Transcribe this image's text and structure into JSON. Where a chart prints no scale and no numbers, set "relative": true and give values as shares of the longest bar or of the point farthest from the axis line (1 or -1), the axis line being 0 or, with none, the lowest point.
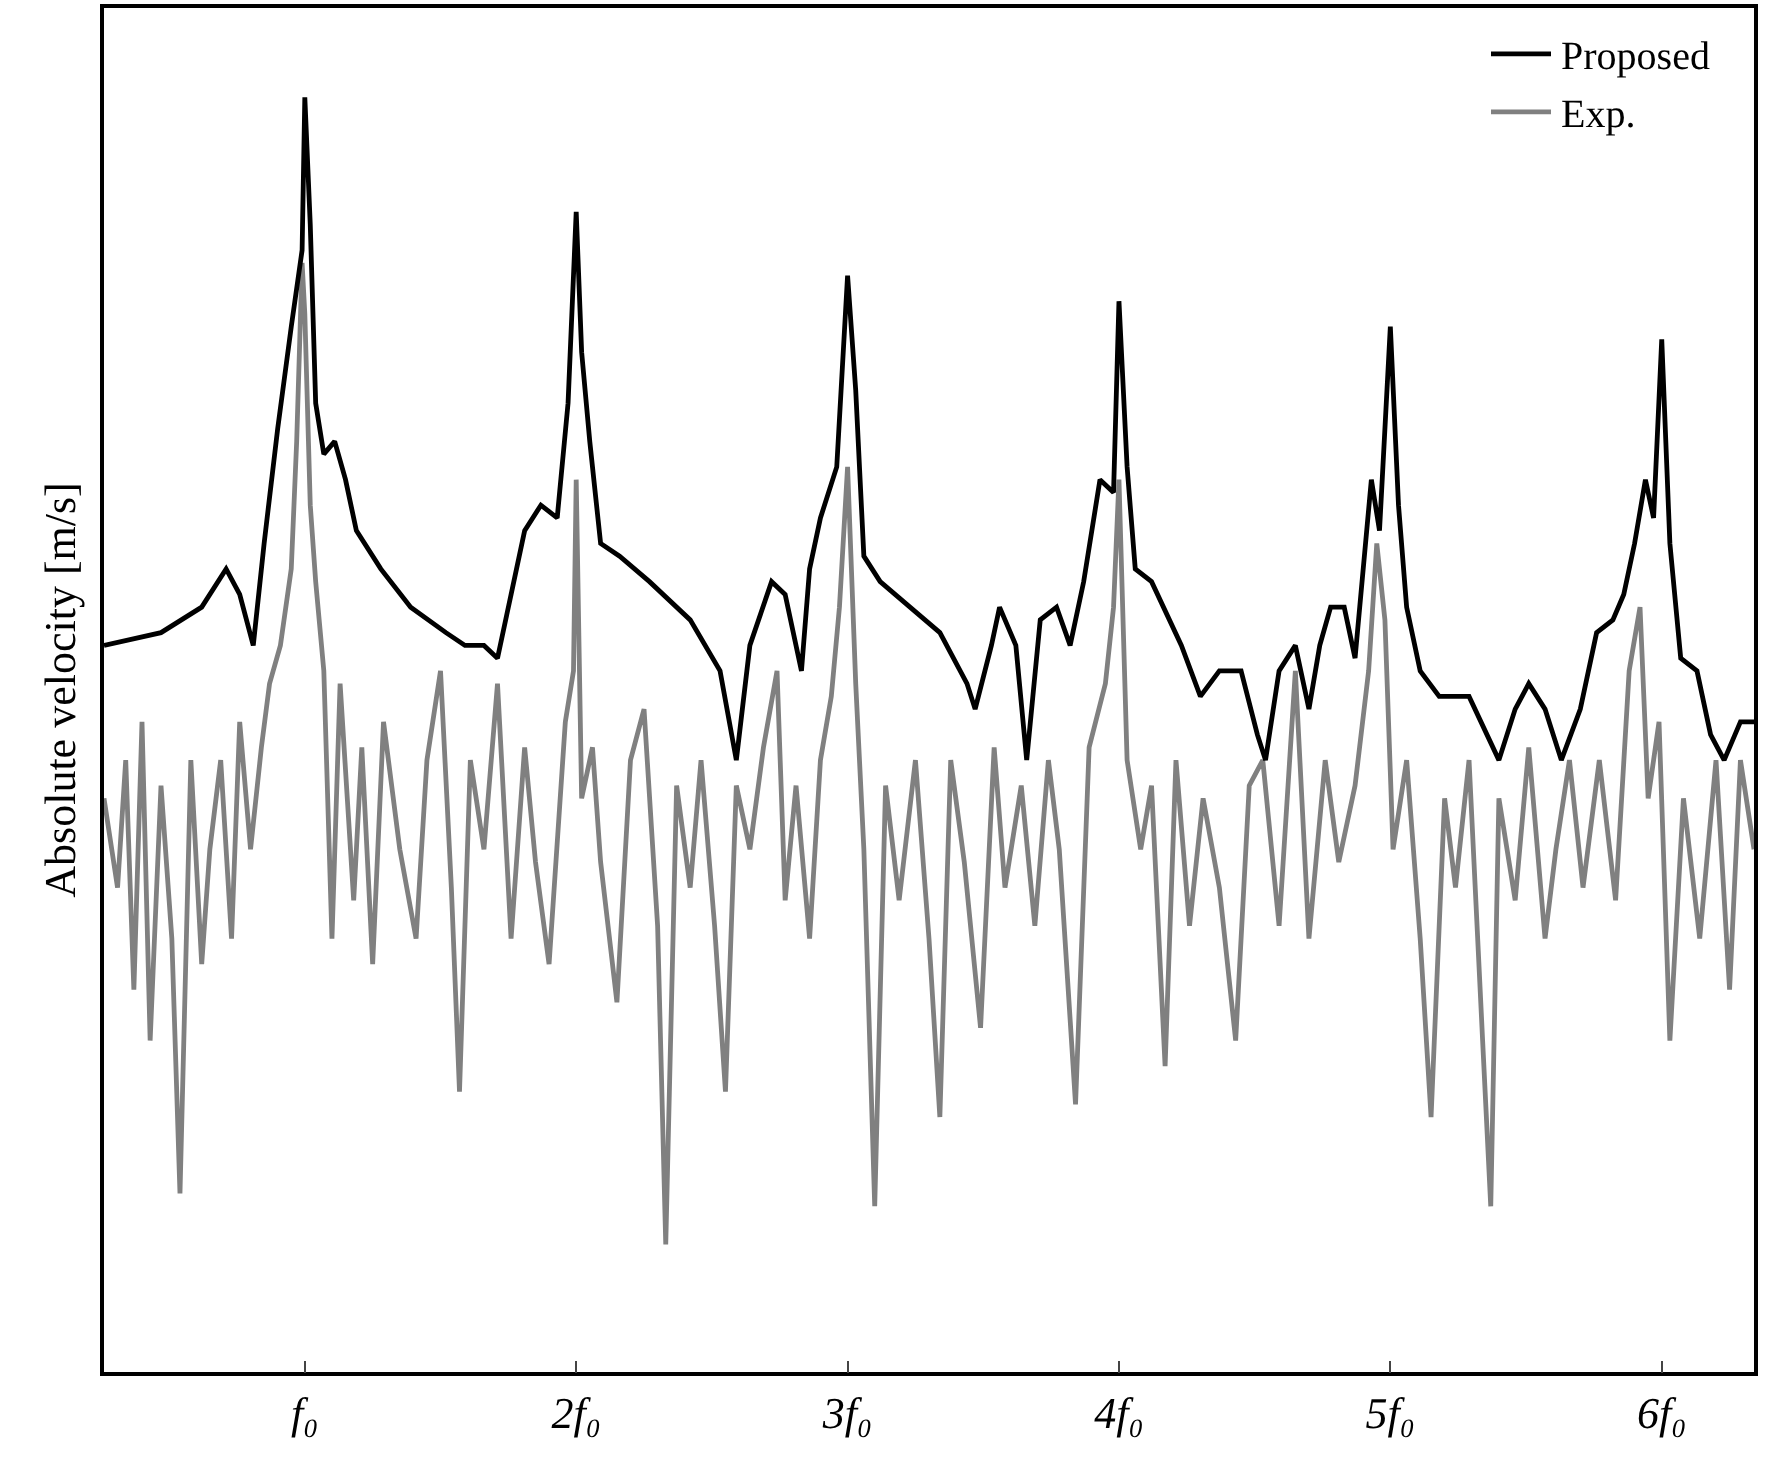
{
  "chart_data": {
    "type": "line",
    "relative": true,
    "ylabel": "Absolute velocity [m/s]",
    "xlim": [
      0.26,
      6.34
    ],
    "xticks": [
      {
        "value": 1,
        "label": "f₀"
      },
      {
        "value": 2,
        "label": "2f₀"
      },
      {
        "value": 3,
        "label": "3f₀"
      },
      {
        "value": 4,
        "label": "4f₀"
      },
      {
        "value": 5,
        "label": "5f₀"
      },
      {
        "value": 6,
        "label": "6f₀"
      }
    ],
    "legend": "top right",
    "grid": false,
    "marker": "none",
    "line_style": "solid",
    "series": [
      {
        "name": "Proposed",
        "color": "#000000",
        "x": [
          0.26,
          0.47,
          0.62,
          0.71,
          0.76,
          0.81,
          0.85,
          0.9,
          0.95,
          0.99,
          1.0,
          1.02,
          1.04,
          1.07,
          1.11,
          1.15,
          1.19,
          1.28,
          1.39,
          1.52,
          1.59,
          1.66,
          1.71,
          1.76,
          1.81,
          1.87,
          1.93,
          1.97,
          2.0,
          2.02,
          2.05,
          2.09,
          2.16,
          2.27,
          2.42,
          2.53,
          2.59,
          2.64,
          2.72,
          2.77,
          2.83,
          2.86,
          2.9,
          2.96,
          3.0,
          3.03,
          3.06,
          3.12,
          3.23,
          3.34,
          3.44,
          3.47,
          3.53,
          3.56,
          3.62,
          3.66,
          3.71,
          3.77,
          3.82,
          3.87,
          3.93,
          3.98,
          4.0,
          4.03,
          4.06,
          4.12,
          4.23,
          4.3,
          4.37,
          4.45,
          4.51,
          4.54,
          4.59,
          4.65,
          4.7,
          4.74,
          4.78,
          4.83,
          4.87,
          4.93,
          4.96,
          5.0,
          5.03,
          5.06,
          5.11,
          5.18,
          5.29,
          5.4,
          5.46,
          5.51,
          5.57,
          5.63,
          5.7,
          5.76,
          5.82,
          5.86,
          5.9,
          5.94,
          5.97,
          6.0,
          6.03,
          6.07,
          6.13,
          6.18,
          6.23,
          6.29,
          6.34
        ],
        "values": [
          0.57,
          0.58,
          0.6,
          0.63,
          0.61,
          0.57,
          0.65,
          0.74,
          0.82,
          0.88,
          1.0,
          0.9,
          0.76,
          0.72,
          0.73,
          0.7,
          0.66,
          0.63,
          0.6,
          0.58,
          0.57,
          0.57,
          0.56,
          0.61,
          0.66,
          0.68,
          0.67,
          0.76,
          0.91,
          0.8,
          0.73,
          0.65,
          0.64,
          0.62,
          0.59,
          0.55,
          0.48,
          0.57,
          0.62,
          0.61,
          0.55,
          0.63,
          0.67,
          0.71,
          0.86,
          0.77,
          0.64,
          0.62,
          0.6,
          0.58,
          0.54,
          0.52,
          0.57,
          0.6,
          0.57,
          0.48,
          0.59,
          0.6,
          0.57,
          0.62,
          0.7,
          0.69,
          0.84,
          0.71,
          0.63,
          0.62,
          0.57,
          0.53,
          0.55,
          0.55,
          0.5,
          0.48,
          0.55,
          0.57,
          0.52,
          0.57,
          0.6,
          0.6,
          0.56,
          0.7,
          0.66,
          0.82,
          0.68,
          0.6,
          0.55,
          0.53,
          0.53,
          0.48,
          0.52,
          0.54,
          0.52,
          0.48,
          0.52,
          0.58,
          0.59,
          0.61,
          0.65,
          0.7,
          0.67,
          0.81,
          0.65,
          0.56,
          0.55,
          0.5,
          0.48,
          0.51,
          0.51
        ]
      },
      {
        "name": "Exp.",
        "color": "#808080",
        "x": [
          0.26,
          0.31,
          0.34,
          0.37,
          0.4,
          0.43,
          0.47,
          0.51,
          0.54,
          0.58,
          0.62,
          0.65,
          0.69,
          0.73,
          0.76,
          0.8,
          0.84,
          0.87,
          0.91,
          0.95,
          0.97,
          0.99,
          1.0,
          1.02,
          1.04,
          1.07,
          1.1,
          1.13,
          1.18,
          1.21,
          1.25,
          1.29,
          1.35,
          1.41,
          1.45,
          1.5,
          1.54,
          1.57,
          1.61,
          1.66,
          1.71,
          1.76,
          1.81,
          1.85,
          1.9,
          1.96,
          1.99,
          2.0,
          2.02,
          2.06,
          2.09,
          2.15,
          2.2,
          2.25,
          2.3,
          2.33,
          2.37,
          2.42,
          2.46,
          2.51,
          2.55,
          2.59,
          2.64,
          2.69,
          2.74,
          2.77,
          2.81,
          2.86,
          2.9,
          2.94,
          2.97,
          3.0,
          3.03,
          3.06,
          3.1,
          3.14,
          3.19,
          3.25,
          3.3,
          3.34,
          3.38,
          3.43,
          3.49,
          3.54,
          3.58,
          3.64,
          3.69,
          3.74,
          3.78,
          3.84,
          3.89,
          3.95,
          3.98,
          4.0,
          4.03,
          4.08,
          4.12,
          4.17,
          4.21,
          4.26,
          4.31,
          4.37,
          4.43,
          4.48,
          4.53,
          4.59,
          4.65,
          4.7,
          4.76,
          4.81,
          4.87,
          4.92,
          4.95,
          4.98,
          5.01,
          5.06,
          5.11,
          5.15,
          5.2,
          5.24,
          5.29,
          5.34,
          5.37,
          5.4,
          5.46,
          5.51,
          5.57,
          5.61,
          5.66,
          5.71,
          5.77,
          5.83,
          5.88,
          5.92,
          5.95,
          5.99,
          6.03,
          6.08,
          6.14,
          6.2,
          6.25,
          6.29,
          6.34
        ],
        "values": [
          0.45,
          0.38,
          0.48,
          0.3,
          0.51,
          0.26,
          0.46,
          0.34,
          0.14,
          0.48,
          0.32,
          0.41,
          0.48,
          0.34,
          0.51,
          0.41,
          0.49,
          0.54,
          0.57,
          0.63,
          0.73,
          0.87,
          0.83,
          0.68,
          0.62,
          0.55,
          0.34,
          0.54,
          0.37,
          0.49,
          0.32,
          0.51,
          0.41,
          0.34,
          0.48,
          0.55,
          0.38,
          0.22,
          0.48,
          0.41,
          0.54,
          0.34,
          0.49,
          0.4,
          0.32,
          0.51,
          0.55,
          0.7,
          0.45,
          0.49,
          0.4,
          0.29,
          0.48,
          0.52,
          0.35,
          0.1,
          0.46,
          0.38,
          0.48,
          0.35,
          0.22,
          0.46,
          0.41,
          0.49,
          0.55,
          0.37,
          0.46,
          0.34,
          0.48,
          0.53,
          0.6,
          0.71,
          0.54,
          0.41,
          0.13,
          0.46,
          0.37,
          0.48,
          0.34,
          0.2,
          0.48,
          0.4,
          0.27,
          0.49,
          0.38,
          0.46,
          0.35,
          0.48,
          0.41,
          0.21,
          0.49,
          0.54,
          0.6,
          0.7,
          0.48,
          0.41,
          0.46,
          0.24,
          0.48,
          0.35,
          0.45,
          0.38,
          0.26,
          0.46,
          0.48,
          0.35,
          0.55,
          0.34,
          0.48,
          0.4,
          0.46,
          0.55,
          0.65,
          0.59,
          0.41,
          0.48,
          0.34,
          0.2,
          0.45,
          0.38,
          0.48,
          0.26,
          0.13,
          0.45,
          0.37,
          0.49,
          0.34,
          0.41,
          0.48,
          0.38,
          0.48,
          0.37,
          0.55,
          0.6,
          0.45,
          0.51,
          0.26,
          0.45,
          0.34,
          0.48,
          0.3,
          0.48,
          0.41
        ]
      }
    ]
  }
}
